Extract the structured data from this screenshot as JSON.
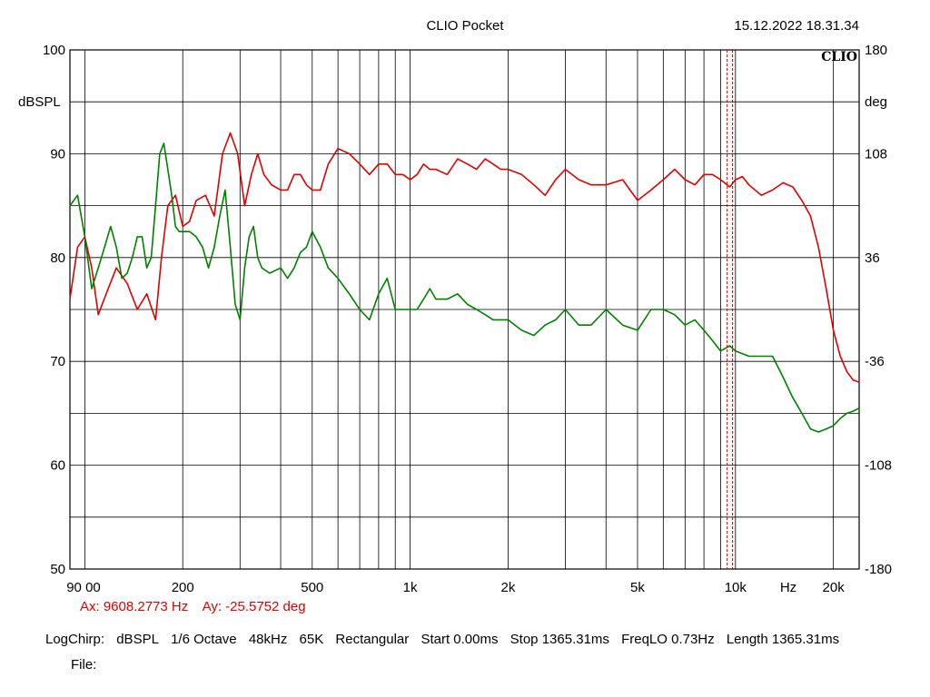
{
  "header": {
    "title": "CLIO Pocket",
    "timestamp": "15.12.2022 18.31.34",
    "logo": "CLIO"
  },
  "chart_data": {
    "type": "line",
    "title": "CLIO Pocket",
    "xlabel": "Hz",
    "ylabel": "dBSPL",
    "y2label": "deg",
    "xscale": "log",
    "xlim": [
      90,
      24000
    ],
    "ylim": [
      50,
      100
    ],
    "y2lim": [
      -180,
      180
    ],
    "x_ticks": [
      {
        "value": 90,
        "label": "90 00"
      },
      {
        "value": 200,
        "label": "200"
      },
      {
        "value": 500,
        "label": "500"
      },
      {
        "value": 1000,
        "label": "1k"
      },
      {
        "value": 2000,
        "label": "2k"
      },
      {
        "value": 5000,
        "label": "5k"
      },
      {
        "value": 10000,
        "label": "10k"
      },
      {
        "value": 20000,
        "label": "20k"
      }
    ],
    "y_ticks": [
      {
        "value": 100,
        "label": "100"
      },
      {
        "value": 90,
        "label": "90"
      },
      {
        "value": 80,
        "label": "80"
      },
      {
        "value": 70,
        "label": "70"
      },
      {
        "value": 60,
        "label": "60"
      },
      {
        "value": 50,
        "label": "50"
      }
    ],
    "y2_ticks": [
      {
        "value": 180,
        "label": "180"
      },
      {
        "value": 108,
        "label": "108"
      },
      {
        "value": 36,
        "label": "36"
      },
      {
        "value": -36,
        "label": "-36"
      },
      {
        "value": -108,
        "label": "-108"
      },
      {
        "value": -180,
        "label": "-180"
      }
    ],
    "grid": true,
    "cursor": {
      "x": 9608.2773
    },
    "series": [
      {
        "color": "#e00000",
        "x": [
          90,
          95,
          100,
          105,
          110,
          118,
          125,
          135,
          145,
          155,
          165,
          172,
          180,
          190,
          200,
          210,
          220,
          235,
          250,
          265,
          280,
          295,
          310,
          325,
          340,
          355,
          375,
          400,
          420,
          440,
          460,
          480,
          500,
          530,
          560,
          600,
          650,
          700,
          750,
          800,
          850,
          900,
          950,
          1000,
          1050,
          1100,
          1150,
          1200,
          1300,
          1400,
          1500,
          1600,
          1700,
          1800,
          1900,
          2000,
          2200,
          2400,
          2600,
          2800,
          3000,
          3300,
          3600,
          4000,
          4500,
          5000,
          5500,
          6000,
          6500,
          7000,
          7500,
          8000,
          8500,
          9000,
          9600,
          10000,
          10500,
          11000,
          12000,
          13000,
          14000,
          15000,
          16000,
          17000,
          18000,
          19000,
          20000,
          21000,
          22000,
          23000,
          24000
        ],
        "values": [
          76,
          81,
          82,
          79,
          74.5,
          77,
          79,
          77.5,
          75,
          76.5,
          74,
          80,
          85,
          86,
          83,
          83.5,
          85.5,
          86,
          84,
          90,
          92,
          90,
          85,
          88,
          90,
          88,
          87,
          86.5,
          86.5,
          88,
          88,
          87,
          86.5,
          86.5,
          89,
          90.5,
          90,
          89,
          88,
          89,
          89,
          88,
          88,
          87.5,
          88,
          89,
          88.5,
          88.5,
          88,
          89.5,
          89,
          88.5,
          89.5,
          89,
          88.5,
          88.5,
          88,
          87,
          86,
          87.5,
          88.5,
          87.5,
          87,
          87,
          87.5,
          85.5,
          86.5,
          87.5,
          88.5,
          87.5,
          87,
          88,
          88,
          87.5,
          86.8,
          87.5,
          87.8,
          87,
          86,
          86.5,
          87.2,
          86.8,
          85.5,
          84,
          81,
          77,
          73,
          70.5,
          69,
          68.2,
          68
        ]
      },
      {
        "color": "#008000",
        "x": [
          90,
          95,
          100,
          105,
          110,
          115,
          120,
          125,
          130,
          135,
          140,
          145,
          150,
          155,
          160,
          165,
          170,
          175,
          180,
          185,
          190,
          195,
          200,
          210,
          220,
          230,
          240,
          250,
          260,
          270,
          280,
          290,
          300,
          310,
          320,
          330,
          340,
          350,
          370,
          400,
          420,
          440,
          460,
          480,
          500,
          530,
          560,
          600,
          650,
          700,
          750,
          800,
          850,
          900,
          950,
          1000,
          1050,
          1100,
          1150,
          1200,
          1300,
          1400,
          1500,
          1600,
          1700,
          1800,
          1900,
          2000,
          2200,
          2400,
          2600,
          2800,
          3000,
          3300,
          3600,
          4000,
          4500,
          5000,
          5500,
          6000,
          6500,
          7000,
          7500,
          8000,
          8500,
          9000,
          9600,
          10000,
          11000,
          12000,
          13000,
          14000,
          15000,
          16000,
          17000,
          18000,
          19000,
          20000,
          21000,
          22000,
          23000,
          24000
        ],
        "values": [
          85,
          86,
          82,
          77,
          79,
          81,
          83,
          81,
          78,
          78.5,
          80,
          82,
          82,
          79,
          80,
          85,
          90,
          91,
          88.5,
          86,
          83,
          82.5,
          82.5,
          82.5,
          82,
          81,
          79,
          81,
          84,
          86.5,
          81,
          75.5,
          74,
          79,
          82,
          83,
          80,
          79,
          78.5,
          79,
          78,
          79,
          80.5,
          81,
          82.5,
          81,
          79,
          78,
          76.5,
          75,
          74,
          76.5,
          78,
          75,
          75,
          75,
          75,
          76,
          77,
          76,
          76,
          76.5,
          75.5,
          75,
          74.5,
          74,
          74,
          74,
          73,
          72.5,
          73.5,
          74,
          75,
          73.5,
          73.5,
          75,
          73.5,
          73,
          75,
          75,
          74.5,
          73.5,
          74,
          73,
          72,
          71,
          71.5,
          71,
          70.5,
          70.5,
          70.5,
          68.5,
          66.5,
          65,
          63.5,
          63.2,
          63.5,
          63.8,
          64.5,
          65,
          65.2,
          65.5
        ]
      }
    ]
  },
  "readout": {
    "ax": "Ax: 9608.2773 Hz",
    "ay": "Ay: -25.5752 deg"
  },
  "info": {
    "mode": "LogChirp:",
    "unit": "dBSPL",
    "smoothing": "1/6 Octave",
    "rate": "48kHz",
    "size": "65K",
    "window": "Rectangular",
    "start": "Start 0.00ms",
    "stop": "Stop 1365.31ms",
    "freqlo": "FreqLO 0.73Hz",
    "length": "Length 1365.31ms"
  },
  "file": {
    "label": "File:"
  }
}
